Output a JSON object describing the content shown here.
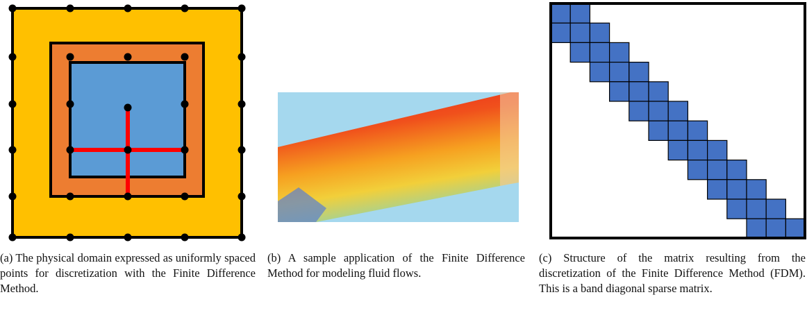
{
  "figures": [
    {
      "caption": "(a) The physical domain expressed as uniformly spaced points for discretization with the Finite Difference Method."
    },
    {
      "caption": "(b) A sample application of the Finite Difference Method for modeling fluid flows."
    },
    {
      "caption": "(c) Structure of the matrix resulting from the discretization of the Finite Difference Method (FDM). This is a band diagonal sparse matrix."
    }
  ]
}
